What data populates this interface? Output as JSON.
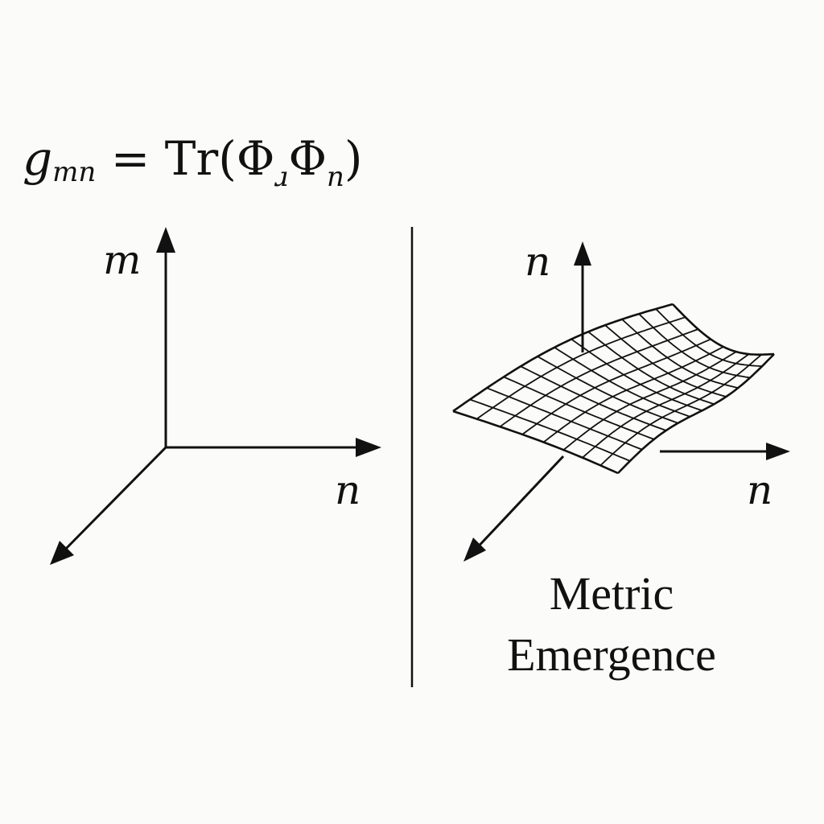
{
  "equation": {
    "lhs_symbol": "g",
    "lhs_subscript": "mn",
    "equals": "=",
    "operator": "Tr",
    "open_paren": "(",
    "phi_1": "Φ",
    "phi_1_subscript": "ɹ",
    "phi_2": "Φ",
    "phi_2_subscript": "n",
    "close_paren": ")"
  },
  "left_axes": {
    "vertical_label": "m",
    "horizontal_label": "n"
  },
  "right_axes": {
    "vertical_label": "n",
    "horizontal_label": "n"
  },
  "caption": {
    "line1": "Metric",
    "line2": "Emergence"
  },
  "colors": {
    "background": "#fbfbf9",
    "ink": "#111111"
  }
}
